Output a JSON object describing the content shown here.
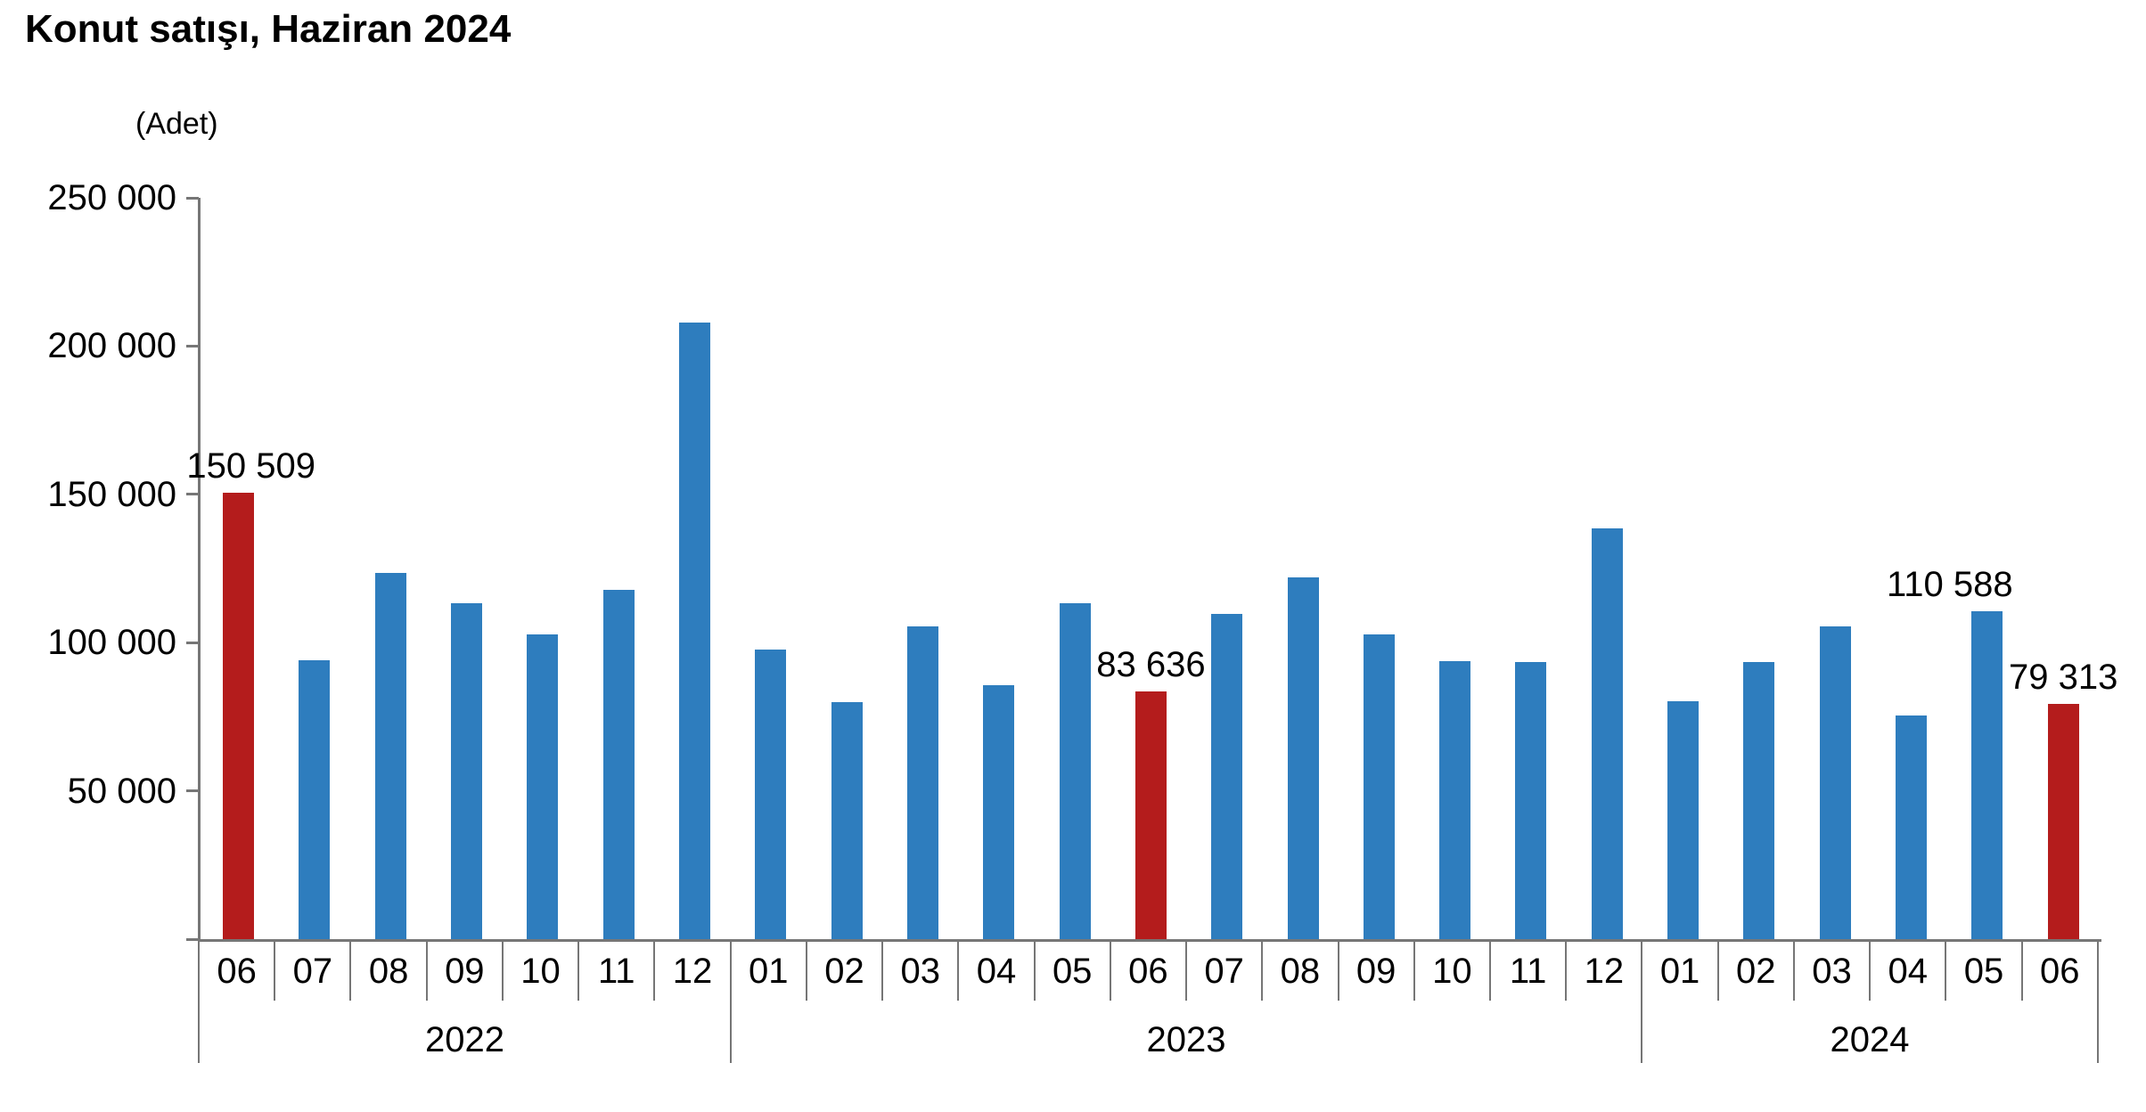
{
  "title": "Konut satışı, Haziran 2024",
  "unit_label": "(Adet)",
  "colors": {
    "bar_blue": "#2E7DBE",
    "bar_red": "#B41C1C",
    "axis_gray": "#767676",
    "text": "#000000"
  },
  "chart_data": {
    "type": "bar",
    "title": "Konut satışı, Haziran 2024",
    "ylabel": "(Adet)",
    "ylim": [
      0,
      250000
    ],
    "grid": false,
    "legend": false,
    "y_ticks": [
      {
        "value": 250000,
        "label": "250 000"
      },
      {
        "value": 200000,
        "label": "200 000"
      },
      {
        "value": 150000,
        "label": "150 000"
      },
      {
        "value": 100000,
        "label": "100 000"
      },
      {
        "value": 50000,
        "label": "50 000"
      },
      {
        "value": 0,
        "label": ""
      }
    ],
    "groups": [
      {
        "year": "2022",
        "points": [
          {
            "month": "06",
            "value": 150509,
            "red": true,
            "ann": "150 509",
            "dx": 14
          },
          {
            "month": "07",
            "value": 93902,
            "red": false
          },
          {
            "month": "08",
            "value": 123491,
            "red": false
          },
          {
            "month": "09",
            "value": 113402,
            "red": false
          },
          {
            "month": "10",
            "value": 102660,
            "red": false
          },
          {
            "month": "11",
            "value": 117806,
            "red": false
          },
          {
            "month": "12",
            "value": 207963,
            "red": false
          }
        ]
      },
      {
        "year": "2023",
        "points": [
          {
            "month": "01",
            "value": 97708,
            "red": false
          },
          {
            "month": "02",
            "value": 80031,
            "red": false
          },
          {
            "month": "03",
            "value": 105476,
            "red": false
          },
          {
            "month": "04",
            "value": 85652,
            "red": false
          },
          {
            "month": "05",
            "value": 113383,
            "red": false
          },
          {
            "month": "06",
            "value": 83636,
            "red": true,
            "ann": "83 636",
            "dx": 0
          },
          {
            "month": "07",
            "value": 109548,
            "red": false
          },
          {
            "month": "08",
            "value": 122091,
            "red": false
          },
          {
            "month": "09",
            "value": 102656,
            "red": false
          },
          {
            "month": "10",
            "value": 93761,
            "red": false
          },
          {
            "month": "11",
            "value": 93514,
            "red": false
          },
          {
            "month": "12",
            "value": 138577,
            "red": false
          }
        ]
      },
      {
        "year": "2024",
        "points": [
          {
            "month": "01",
            "value": 80308,
            "red": false
          },
          {
            "month": "02",
            "value": 93482,
            "red": false
          },
          {
            "month": "03",
            "value": 105394,
            "red": false
          },
          {
            "month": "04",
            "value": 75569,
            "red": false
          },
          {
            "month": "05",
            "value": 110588,
            "red": false,
            "ann": "110 588",
            "dx": -42
          },
          {
            "month": "06",
            "value": 79313,
            "red": true,
            "ann": "79 313",
            "dx": 0
          }
        ]
      }
    ]
  }
}
